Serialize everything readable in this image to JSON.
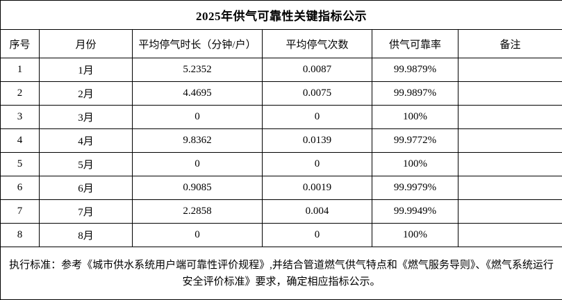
{
  "title": "2025年供气可靠性关键指标公示",
  "table": {
    "headers": [
      "序号",
      "月份",
      "平均停气时长（分钟/户）",
      "平均停气次数",
      "供气可靠率",
      "备注"
    ],
    "rows": [
      [
        "1",
        "1月",
        "5.2352",
        "0.0087",
        "99.9879%",
        ""
      ],
      [
        "2",
        "2月",
        "4.4695",
        "0.0075",
        "99.9897%",
        ""
      ],
      [
        "3",
        "3月",
        "0",
        "0",
        "100%",
        ""
      ],
      [
        "4",
        "4月",
        "9.8362",
        "0.0139",
        "99.9772%",
        ""
      ],
      [
        "5",
        "5月",
        "0",
        "0",
        "100%",
        ""
      ],
      [
        "6",
        "6月",
        "0.9085",
        "0.0019",
        "99.9979%",
        ""
      ],
      [
        "7",
        "7月",
        "2.2858",
        "0.004",
        "99.9949%",
        ""
      ],
      [
        "8",
        "8月",
        "0",
        "0",
        "100%",
        ""
      ]
    ]
  },
  "footer": {
    "note": "执行标准：参考《城市供水系统用户端可靠性评价规程》,并结合管道燃气供气特点和《燃气服务导则》、《燃气系统运行安全评价标准》要求，确定相应指标公示。"
  },
  "colors": {
    "border": "#000000",
    "text": "#000000",
    "background": "#ffffff"
  }
}
